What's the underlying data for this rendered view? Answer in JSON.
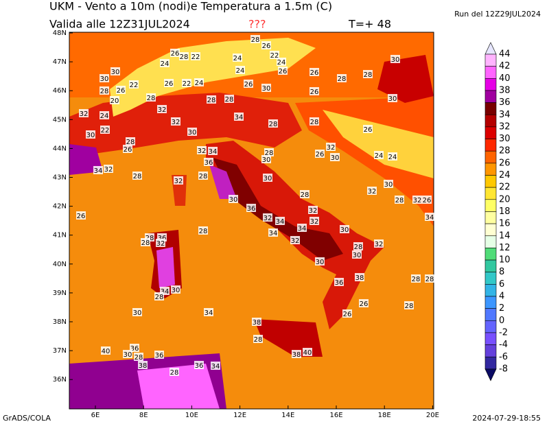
{
  "header": {
    "title": "UKM - Vento a 10m (nodi)e Temperatura a 1.5m (C)",
    "valid": "Valida alle 12Z31JUL2024",
    "flag": "???",
    "step": "T=+ 48",
    "run": "Run del 12Z29JUL2024"
  },
  "map": {
    "lat_labels": [
      "48N",
      "47N",
      "46N",
      "45N",
      "44N",
      "43N",
      "42N",
      "41N",
      "40N",
      "39N",
      "38N",
      "37N",
      "36N"
    ],
    "lon_labels": [
      "6E",
      "8E",
      "10E",
      "12E",
      "14E",
      "16E",
      "18E",
      "20E"
    ],
    "contour_labels": [
      28,
      26,
      26,
      28,
      22,
      24,
      22,
      24,
      24,
      30,
      24,
      26,
      26,
      30,
      30,
      28,
      28,
      22,
      26,
      22,
      24,
      26,
      30,
      28,
      26,
      26,
      30,
      20,
      28,
      28,
      28,
      32,
      32,
      24,
      34,
      32,
      28,
      28,
      30,
      22,
      30,
      28,
      26,
      26,
      32,
      34,
      28,
      32,
      30,
      26,
      30,
      24,
      24,
      36,
      34,
      32,
      28,
      28,
      32,
      30,
      30,
      32,
      28,
      32,
      26,
      28,
      30,
      26,
      36,
      32,
      34,
      28,
      32,
      34,
      34,
      32,
      30,
      28,
      36,
      28,
      32,
      34,
      32,
      28,
      30,
      32,
      30,
      38,
      36,
      34,
      30,
      28,
      28,
      28,
      26,
      28,
      30,
      34,
      26,
      38,
      28,
      40,
      36,
      30,
      28,
      36,
      38,
      40,
      38,
      28,
      36,
      34
    ]
  },
  "colorbar": {
    "labels": [
      44,
      42,
      40,
      38,
      36,
      34,
      32,
      30,
      28,
      26,
      24,
      22,
      20,
      18,
      16,
      14,
      12,
      10,
      8,
      6,
      4,
      2,
      0,
      -2,
      -4,
      -6,
      -8
    ],
    "colors": [
      "#e6e6ff",
      "#ffb4ff",
      "#ff64ff",
      "#e600e6",
      "#a000a0",
      "#780000",
      "#b40000",
      "#dc0000",
      "#ff2800",
      "#ff6400",
      "#ff9600",
      "#ffc800",
      "#ffe632",
      "#ffff64",
      "#ffffa0",
      "#ffffd2",
      "#e6ffe6",
      "#50dc78",
      "#32c8a0",
      "#32c8c8",
      "#32b4e6",
      "#3c96ff",
      "#5078ff",
      "#6464ff",
      "#7850ff",
      "#6440dc",
      "#3228a0",
      "#0a0a64"
    ]
  },
  "footer": {
    "left": "GrADS/COLA",
    "right": "2024-07-29-18:55"
  }
}
